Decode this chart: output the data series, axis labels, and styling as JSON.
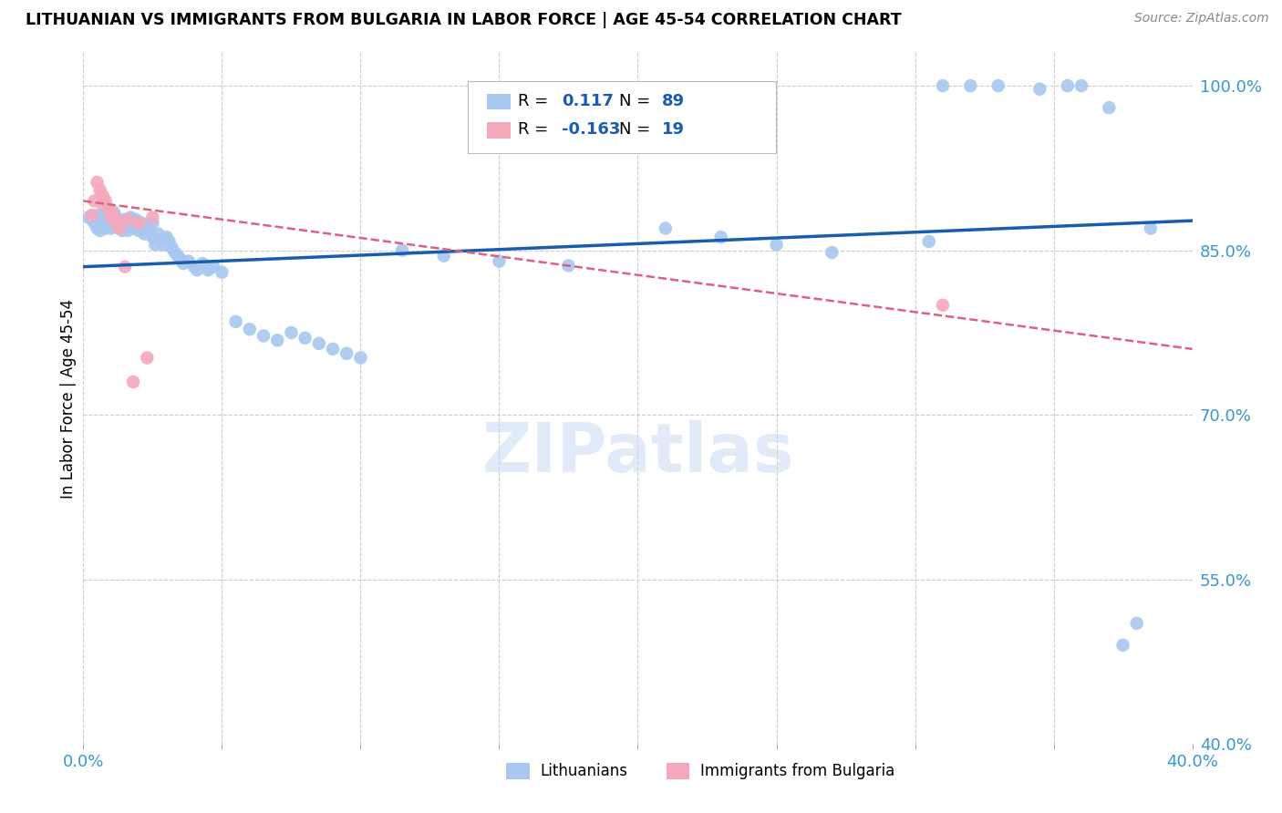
{
  "title": "LITHUANIAN VS IMMIGRANTS FROM BULGARIA IN LABOR FORCE | AGE 45-54 CORRELATION CHART",
  "source": "Source: ZipAtlas.com",
  "ylabel": "In Labor Force | Age 45-54",
  "xlim": [
    0.0,
    0.4
  ],
  "ylim": [
    0.4,
    1.03
  ],
  "yticks": [
    0.4,
    0.55,
    0.7,
    0.85,
    1.0
  ],
  "ytick_labels": [
    "40.0%",
    "55.0%",
    "70.0%",
    "85.0%",
    "100.0%"
  ],
  "xticks": [
    0.0,
    0.05,
    0.1,
    0.15,
    0.2,
    0.25,
    0.3,
    0.35,
    0.4
  ],
  "xtick_labels": [
    "0.0%",
    "",
    "",
    "",
    "",
    "",
    "",
    "",
    "40.0%"
  ],
  "blue_color": "#a8c8f0",
  "pink_color": "#f5a8bc",
  "blue_line_color": "#1a5cb0",
  "pink_line_color": "#e06080",
  "watermark": "ZIPatlas",
  "blue_scatter_x": [
    0.002,
    0.003,
    0.004,
    0.005,
    0.005,
    0.006,
    0.006,
    0.007,
    0.007,
    0.008,
    0.008,
    0.009,
    0.009,
    0.009,
    0.01,
    0.01,
    0.01,
    0.011,
    0.011,
    0.012,
    0.012,
    0.013,
    0.013,
    0.014,
    0.014,
    0.015,
    0.015,
    0.016,
    0.016,
    0.017,
    0.018,
    0.018,
    0.019,
    0.019,
    0.02,
    0.021,
    0.022,
    0.022,
    0.023,
    0.024,
    0.025,
    0.025,
    0.026,
    0.027,
    0.028,
    0.029,
    0.03,
    0.031,
    0.032,
    0.033,
    0.034,
    0.035,
    0.036,
    0.038,
    0.04,
    0.041,
    0.043,
    0.045,
    0.047,
    0.05,
    0.055,
    0.06,
    0.065,
    0.07,
    0.075,
    0.08,
    0.085,
    0.09,
    0.095,
    0.1,
    0.115,
    0.13,
    0.15,
    0.175,
    0.21,
    0.23,
    0.25,
    0.27,
    0.305,
    0.31,
    0.32,
    0.33,
    0.345,
    0.355,
    0.36,
    0.37,
    0.375,
    0.38,
    0.385
  ],
  "blue_scatter_y": [
    0.88,
    0.878,
    0.875,
    0.882,
    0.87,
    0.876,
    0.868,
    0.88,
    0.875,
    0.883,
    0.87,
    0.878,
    0.885,
    0.872,
    0.88,
    0.875,
    0.87,
    0.885,
    0.878,
    0.875,
    0.88,
    0.872,
    0.878,
    0.875,
    0.868,
    0.878,
    0.872,
    0.875,
    0.868,
    0.88,
    0.875,
    0.87,
    0.878,
    0.872,
    0.868,
    0.875,
    0.87,
    0.865,
    0.87,
    0.865,
    0.875,
    0.862,
    0.855,
    0.865,
    0.86,
    0.855,
    0.862,
    0.858,
    0.852,
    0.848,
    0.845,
    0.842,
    0.838,
    0.84,
    0.835,
    0.832,
    0.838,
    0.832,
    0.835,
    0.83,
    0.785,
    0.778,
    0.772,
    0.768,
    0.775,
    0.77,
    0.765,
    0.76,
    0.756,
    0.752,
    0.85,
    0.845,
    0.84,
    0.836,
    0.87,
    0.862,
    0.855,
    0.848,
    0.858,
    1.0,
    1.0,
    1.0,
    0.997,
    1.0,
    1.0,
    0.98,
    0.49,
    0.51,
    0.87
  ],
  "pink_scatter_x": [
    0.003,
    0.004,
    0.005,
    0.006,
    0.007,
    0.007,
    0.008,
    0.009,
    0.01,
    0.011,
    0.012,
    0.013,
    0.015,
    0.016,
    0.018,
    0.02,
    0.023,
    0.025,
    0.31
  ],
  "pink_scatter_y": [
    0.882,
    0.895,
    0.912,
    0.905,
    0.9,
    0.892,
    0.895,
    0.888,
    0.88,
    0.882,
    0.875,
    0.87,
    0.835,
    0.878,
    0.73,
    0.875,
    0.752,
    0.88,
    0.8
  ],
  "blue_trend_x0": 0.0,
  "blue_trend_x1": 0.4,
  "blue_trend_y0": 0.835,
  "blue_trend_y1": 0.877,
  "pink_trend_x0": 0.0,
  "pink_trend_x1": 0.4,
  "pink_trend_y0": 0.895,
  "pink_trend_y1": 0.76
}
